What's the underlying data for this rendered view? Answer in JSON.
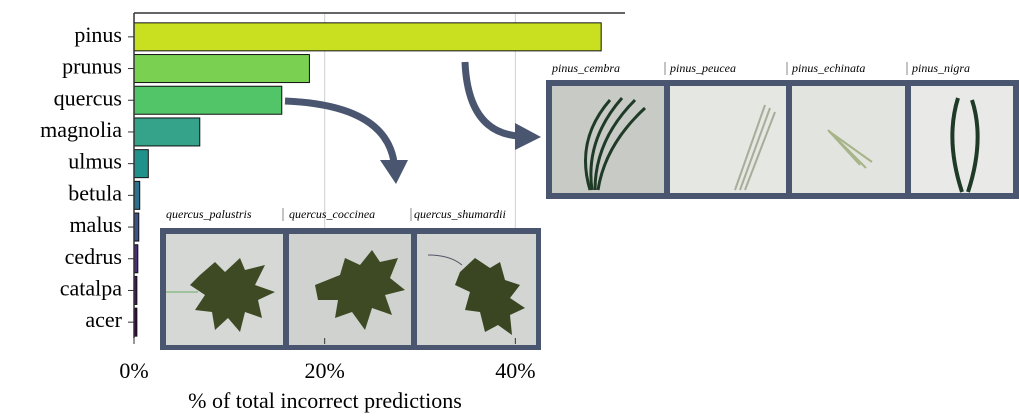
{
  "chart_data": {
    "type": "barh",
    "xlabel": "% of total incorrect predictions",
    "categories": [
      "pinus",
      "prunus",
      "quercus",
      "magnolia",
      "ulmus",
      "betula",
      "malus",
      "cedrus",
      "catalpa",
      "acer"
    ],
    "values": [
      49.0,
      18.4,
      15.5,
      6.9,
      1.5,
      0.6,
      0.5,
      0.4,
      0.3,
      0.3
    ],
    "colors": [
      "#c8e020",
      "#7ad151",
      "#52c569",
      "#35a38a",
      "#21918c",
      "#2c728e",
      "#3b528b",
      "#472d7b",
      "#46106b",
      "#440154"
    ],
    "xlim": [
      0,
      51.5
    ],
    "xticks": [
      {
        "value": 0,
        "label": "0%"
      },
      {
        "value": 20,
        "label": "20%"
      },
      {
        "value": 40,
        "label": "40%"
      }
    ],
    "grid": true
  },
  "panels": [
    {
      "labels": [
        "quercus_palustris",
        "quercus_coccinea",
        "quercus_shumardii"
      ]
    },
    {
      "labels": [
        "pinus_cembra",
        "pinus_peucea",
        "pinus_echinata",
        "pinus_nigra"
      ]
    }
  ]
}
